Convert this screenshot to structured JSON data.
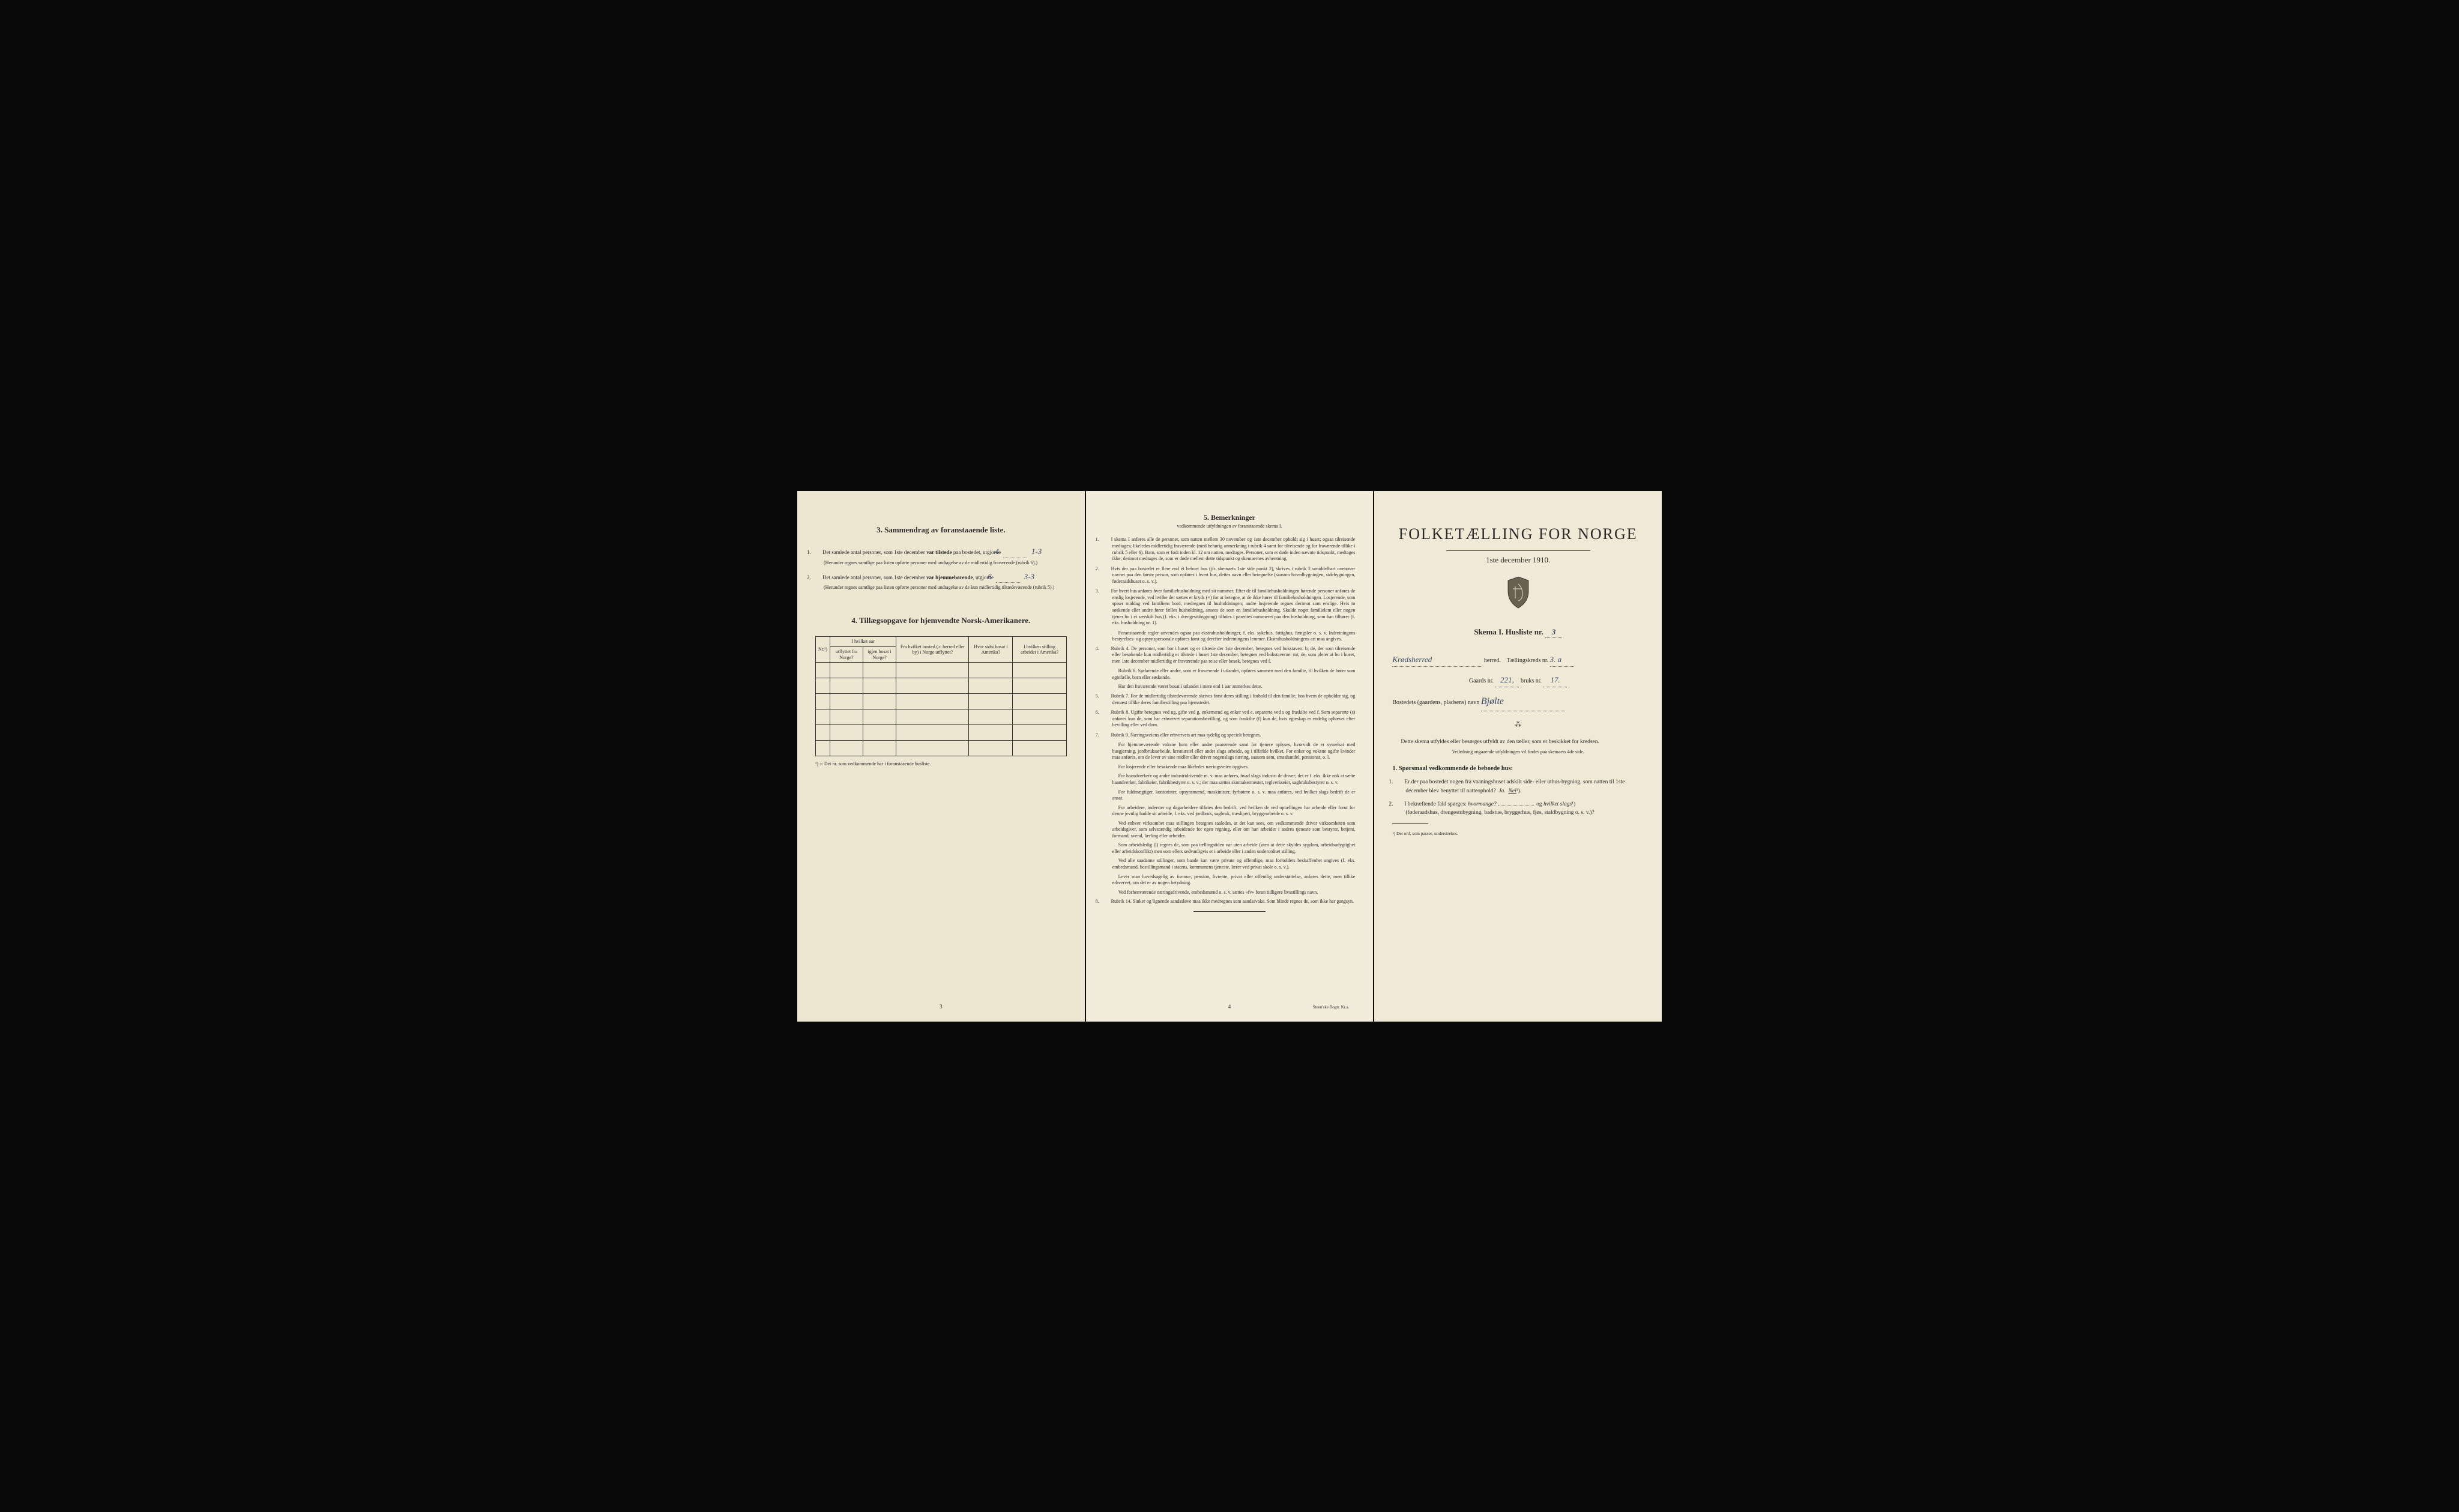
{
  "colors": {
    "page_bg1": "#ede6d1",
    "page_bg2": "#f2ecda",
    "page_bg3": "#f0e9d5",
    "outer_bg": "#0a0a0a",
    "text": "#2a2a2a",
    "handwritten": "#3a4a6a",
    "border": "#333333"
  },
  "page1": {
    "section3": {
      "number": "3.",
      "title": "Sammendrag av foranstaaende liste.",
      "items": [
        {
          "num": "1.",
          "text_before": "Det samlede antal personer, som 1ste december ",
          "bold1": "var tilstede",
          "text_mid": " paa bostedet, utgjorde ",
          "fill": "4",
          "fill2": "1-3",
          "note": "(Herunder regnes samtlige paa listen opførte personer med undtagelse av de midlertidig fraværende (rubrik 6).)"
        },
        {
          "num": "2.",
          "text_before": "Det samlede antal personer, som 1ste december ",
          "bold1": "var hjemmehørende",
          "text_mid": ", utgjorde ",
          "fill": "6",
          "fill2": "3-3",
          "note": "(Herunder regnes samtlige paa listen opførte personer med undtagelse av de kun midlertidig tilstedeværende (rubrik 5).)"
        }
      ]
    },
    "section4": {
      "number": "4.",
      "title": "Tillægsopgave for hjemvendte Norsk-Amerikanere.",
      "headers": {
        "col0": "Nr.¹)",
        "col1_group": "I hvilket aar",
        "col1a": "utflyttet fra Norge?",
        "col1b": "igjen bosat i Norge?",
        "col2": "Fra hvilket bosted (ɔ: herred eller by) i Norge utflyttet?",
        "col3": "Hvor sidst bosat i Amerika?",
        "col4": "I hvilken stilling arbeidet i Amerika?"
      },
      "rows_count": 6,
      "footnote": "¹) ɔ: Det nr. som vedkommende har i foranstaaende husliste."
    },
    "page_number": "3"
  },
  "page2": {
    "title_num": "5.",
    "title": "Bemerkninger",
    "subtitle": "vedkommende utfyldningen av foranstaaende skema I.",
    "items": [
      {
        "n": "1.",
        "text": "I skema I anføres alle de personer, som natten mellem 30 november og 1ste december opholdt sig i huset; ogsaa tilreisende medtages; likeledes midlertidig fraværende (med behørig anmerkning i rubrik 4 samt for tilreisende og for fraværende tillike i rubrik 5 eller 6). Barn, som er født inden kl. 12 om natten, medtages. Personer, som er døde inden nævnte tidspunkt, medtages ikke; derimot medtages de, som er døde mellem dette tidspunkt og skemaernes avhentning."
      },
      {
        "n": "2.",
        "text": "Hvis der paa bostedet er flere end ét beboet hus (jfr. skemaets 1ste side punkt 2), skrives i rubrik 2 umiddelbart ovenover navnet paa den første person, som opføres i hvert hus, dettes navn eller betegnelse (saasom hovedbygningen, sidebygningen, føderaadshuset o. s. v.)."
      },
      {
        "n": "3.",
        "text": "For hvert hus anføres hver familiehusholdning med sit nummer. Efter de til familiehusholdningen hørende personer anføres de enslig losjerende, ved hvilke der sættes et kryds (×) for at betegne, at de ikke hører til familiehusholdningen. Losjerende, som spiser middag ved familiens bord, medregnes til husholdningen; andre losjerende regnes derimot som enslige. Hvis to søskende eller andre fører fælles husholdning, ansees de som en familiehusholdning. Skulde noget familielem eller nogen tjener bo i et særskilt hus (f. eks. i drengestubygning) tilføies i parentes nummeret paa den husholdning, som han tilhører (f. eks. husholdning nr. 1)."
      },
      {
        "n": "3b.",
        "text": "Foranstaaende regler anvendes ogsaa paa ekstrahusholdninger, f. eks. sykehus, fattighus, fængsler o. s. v. Indretningens bestyrelses- og opsynspersonale opføres først og derefter indretningens lemmer. Ekstrahusholdningens art maa angives.",
        "indent": true
      },
      {
        "n": "4.",
        "text": "Rubrik 4. De personer, som bor i huset og er tilstede der 1ste december, betegnes ved bokstaven: b; de, der som tilreisende eller besøkende kun midlertidig er tilstede i huset 1ste december, betegnes ved bokstaverne: mt; de, som pleier at bo i huset, men 1ste december midlertidig er fraværende paa reise eller besøk, betegnes ved f."
      },
      {
        "n": "4b.",
        "text": "Rubrik 6. Sjøfarende eller andre, som er fraværende i utlandet, opføres sammen med den familie, til hvilken de hører som egtefælle, barn eller søskende.",
        "indent": true
      },
      {
        "n": "4c.",
        "text": "Har den fraværende været bosat i utlandet i mere end 1 aar anmerkes dette.",
        "indent": true
      },
      {
        "n": "5.",
        "text": "Rubrik 7. For de midlertidig tilstedeværende skrives først deres stilling i forhold til den familie, hos hvem de opholder sig, og dernæst tillike deres familiestilling paa hjemstedet."
      },
      {
        "n": "6.",
        "text": "Rubrik 8. Ugifte betegnes ved ug, gifte ved g, enkemænd og enker ved e, separerte ved s og fraskilte ved f. Som separerte (s) anføres kun de, som har erhvervet separationsbevilling, og som fraskilte (f) kun de, hvis egteskap er endelig ophævet efter bevilling eller ved dom."
      },
      {
        "n": "7.",
        "text": "Rubrik 9. Næringsveiens eller erhvervets art maa tydelig og specielt betegnes."
      }
    ],
    "paras": [
      "For hjemmeværende voksne barn eller andre paarørende samt for tjenere oplyses, hvorvidt de er sysselsat med husgjerning, jordbruksarbeide, kreaturstel eller andet slags arbeide, og i tilfælde hvilket. For enker og voksne ugifte kvinder maa anføres, om de lever av sine midler eller driver nogenslags næring, saasom søm, smaahandel, pensionat, o. l.",
      "For losjerende eller besøkende maa likeledes næringsveien opgives.",
      "For haandverkere og andre industridrivende m. v. maa anføres, hvad slags industri de driver; det er f. eks. ikke nok at sætte haandverker, fabrikeier, fabrikbestyrer o. s. v.; der maa sættes skomakermester, teglverkseier, sagbruksbestyrer o. s. v.",
      "For fuldmægtiger, kontorister, opsynsmænd, maskinister, fyrbøtere o. s. v. maa anføres, ved hvilket slags bedrift de er ansat.",
      "For arbeidere, inderster og dagarbeidere tilføies den bedrift, ved hvilken de ved optællingen har arbeide eller forut for denne jevnlig hadde sit arbeide, f. eks. ved jordbruk, sagbruk, træsliperi, bryggearbeide o. s. v.",
      "Ved enhver virksomhet maa stillingen betegnes saaledes, at det kan sees, om vedkommende driver virksomheten som arbeidsgiver, som selvstændig arbeidende for egen regning, eller om han arbeider i andres tjeneste som bestyrer, betjent, formand, svend, lærling eller arbeider.",
      "Som arbeidsledig (l) regnes de, som paa tællingstiden var uten arbeide (uten at dette skyldes sygdom, arbeidsudygtighet eller arbeidskonflikt) men som ellers sedvanligvis er i arbeide eller i anden underordnet stilling.",
      "Ved alle saadanne stillinger, som baade kan være private og offentlige, maa forholdets beskaffenhet angives (f. eks. embedsmand, bestillingsmand i statens, kommunens tjeneste, lærer ved privat skole o. s. v.).",
      "Lever man hovedsagelig av formue, pension, livrente, privat eller offentlig understøttelse, anføres dette, men tillike erhvervet, om det er av nogen betydning.",
      "Ved forhenværende næringsdrivende, embedsmænd o. s. v. sættes «fv» foran tidligere livsstillings navn."
    ],
    "item8": {
      "n": "8.",
      "text": "Rubrik 14. Sinker og lignende aandssløve maa ikke medregnes som aandssvake. Som blinde regnes de, som ikke har gangsyn."
    },
    "page_number": "4",
    "printer": "Steen'ske Bogtr. Kr.a."
  },
  "page3": {
    "main_title": "FOLKETÆLLING FOR NORGE",
    "date": "1ste december 1910.",
    "skema_label": "Skema I.  Husliste nr.",
    "skema_fill": "3",
    "herred_fill": "Krødsherred",
    "herred_label": "herred.",
    "taellingskreds_label": "Tællingskreds nr.",
    "taellingskreds_fill": "3. a",
    "gaards_label": "Gaards nr.",
    "gaards_fill": "221,",
    "bruks_label": "bruks nr.",
    "bruks_fill": "17.",
    "bosted_label": "Bostedets (gaardens, pladsens) navn",
    "bosted_fill": "Bjølte",
    "instruct1": "Dette skema utfyldes eller besørges utfyldt av den tæller, som er beskikket for kredsen.",
    "instruct2": "Veiledning angaaende utfyldningen vil findes paa skemaets 4de side.",
    "q_head_num": "1.",
    "q_head": "Spørsmaal vedkommende de beboede hus:",
    "q1": {
      "num": "1.",
      "text": "Er der paa bostedet nogen fra vaaningshuset adskilt side- eller uthus-bygning, som natten til 1ste december blev benyttet til natteophold?",
      "ja": "Ja.",
      "nei": "Nei",
      "sup": "¹)."
    },
    "q2": {
      "num": "2.",
      "text_a": "I bekræftende fald spørges: ",
      "em1": "hvormange?",
      "text_b": " og ",
      "em2": "hvilket slags",
      "sup": "¹)",
      "text_c": "(føderaadshus, drengestubygning, badstue, bryggerhus, fjøs, staldbygning o. s. v.)?"
    },
    "footnote": "¹) Det ord, som passer, understrekes."
  }
}
